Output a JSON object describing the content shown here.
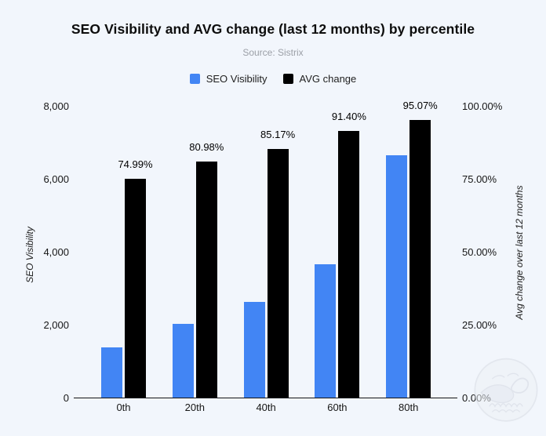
{
  "chart_data": {
    "type": "bar",
    "title": "SEO Visibility and AVG change (last 12 months) by percentile",
    "subtitle": "Source: Sistrix",
    "categories": [
      "0th",
      "20th",
      "40th",
      "60th",
      "80th"
    ],
    "series": [
      {
        "name": "SEO Visibility",
        "axis": "left",
        "color": "#4285f4",
        "values": [
          1370,
          2020,
          2620,
          3660,
          6650
        ]
      },
      {
        "name": "AVG change",
        "axis": "right",
        "color": "#000000",
        "values": [
          74.99,
          80.98,
          85.17,
          91.4,
          95.07
        ],
        "data_labels": [
          "74.99%",
          "80.98%",
          "85.17%",
          "91.40%",
          "95.07%"
        ]
      }
    ],
    "left_axis": {
      "label": "SEO Visibility",
      "ticks": [
        "0",
        "2,000",
        "4,000",
        "6,000",
        "8,000"
      ],
      "range": [
        0,
        8000
      ]
    },
    "right_axis": {
      "label": "Avg change over last 12 months",
      "ticks": [
        "0.00%",
        "25.00%",
        "50.00%",
        "75.00%",
        "100.00%"
      ],
      "range": [
        0,
        100
      ]
    },
    "legend_position": "top",
    "grid": false
  },
  "colors": {
    "background": "#f2f6fc",
    "accent_blue": "#4285f4",
    "bar_black": "#000000",
    "subtitle_gray": "#9b9fa6"
  }
}
